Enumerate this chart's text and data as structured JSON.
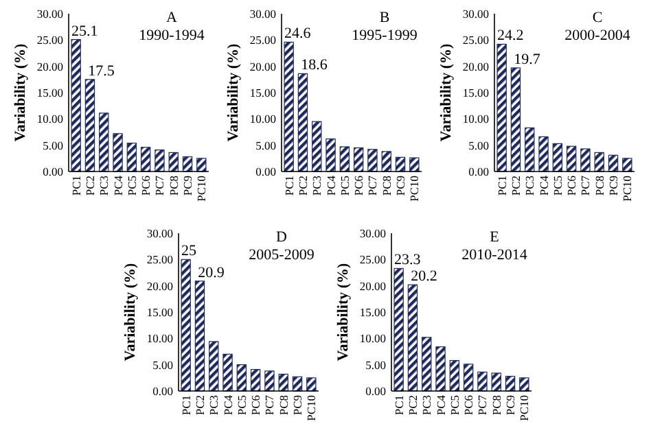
{
  "chart_data": [
    {
      "type": "bar",
      "title": "A",
      "subtitle": "1990-1994",
      "ylabel": "Variability (%)",
      "categories": [
        "PC1",
        "PC2",
        "PC3",
        "PC4",
        "PC5",
        "PC6",
        "PC7",
        "PC8",
        "PC9",
        "PC10"
      ],
      "values": [
        25.1,
        17.5,
        11.1,
        7.2,
        5.4,
        4.6,
        4.1,
        3.6,
        2.8,
        2.5
      ],
      "value_labels": [
        "25.1",
        "17.5",
        null,
        null,
        null,
        null,
        null,
        null,
        null,
        null
      ],
      "color": "#1f2a5c",
      "ylim": [
        0,
        30
      ],
      "yticks": [
        {
          "value": 0,
          "label": "0.00"
        },
        {
          "value": 5,
          "label": "5.00"
        },
        {
          "value": 10,
          "label": "10.00"
        },
        {
          "value": 15,
          "label": "15.00"
        },
        {
          "value": 20,
          "label": "20.00"
        },
        {
          "value": 25,
          "label": "25.00"
        },
        {
          "value": 30,
          "label": "30.00"
        }
      ]
    },
    {
      "type": "bar",
      "title": "B",
      "subtitle": "1995-1999",
      "ylabel": "Variability (%)",
      "categories": [
        "PC1",
        "PC2",
        "PC3",
        "PC4",
        "PC5",
        "PC6",
        "PC7",
        "PC8",
        "PC9",
        "PC10"
      ],
      "values": [
        24.6,
        18.6,
        9.5,
        6.2,
        4.7,
        4.5,
        4.2,
        3.8,
        2.7,
        2.6
      ],
      "value_labels": [
        "24.6",
        "18.6",
        null,
        null,
        null,
        null,
        null,
        null,
        null,
        null
      ],
      "color": "#1f2a5c",
      "ylim": [
        0,
        30
      ],
      "yticks": [
        {
          "value": 0,
          "label": "0.00"
        },
        {
          "value": 5,
          "label": "5.00"
        },
        {
          "value": 10,
          "label": "10.00"
        },
        {
          "value": 15,
          "label": "15.00"
        },
        {
          "value": 20,
          "label": "20.00"
        },
        {
          "value": 25,
          "label": "25.00"
        },
        {
          "value": 30,
          "label": "30.00"
        }
      ]
    },
    {
      "type": "bar",
      "title": "C",
      "subtitle": "2000-2004",
      "ylabel": "Variability (%)",
      "categories": [
        "PC1",
        "PC2",
        "PC3",
        "PC4",
        "PC5",
        "PC6",
        "PC7",
        "PC8",
        "PC9",
        "PC10"
      ],
      "values": [
        24.2,
        19.7,
        8.3,
        6.6,
        5.3,
        4.8,
        4.3,
        3.6,
        3.1,
        2.5
      ],
      "value_labels": [
        "24.2",
        "19.7",
        null,
        null,
        null,
        null,
        null,
        null,
        null,
        null
      ],
      "color": "#1f2a5c",
      "ylim": [
        0,
        30
      ],
      "yticks": [
        {
          "value": 0,
          "label": "0.00"
        },
        {
          "value": 5,
          "label": "5.00"
        },
        {
          "value": 10,
          "label": "10.00"
        },
        {
          "value": 15,
          "label": "15.00"
        },
        {
          "value": 20,
          "label": "20.00"
        },
        {
          "value": 25,
          "label": "25.00"
        },
        {
          "value": 30,
          "label": "30.00"
        }
      ]
    },
    {
      "type": "bar",
      "title": "D",
      "subtitle": "2005-2009",
      "ylabel": "Variability (%)",
      "categories": [
        "PC1",
        "PC2",
        "PC3",
        "PC4",
        "PC5",
        "PC6",
        "PC7",
        "PC8",
        "PC9",
        "PC10"
      ],
      "values": [
        25,
        20.9,
        9.4,
        7.0,
        5.0,
        4.1,
        3.8,
        3.2,
        2.7,
        2.5
      ],
      "value_labels": [
        "25",
        "20.9",
        null,
        null,
        null,
        null,
        null,
        null,
        null,
        null
      ],
      "color": "#1f2a5c",
      "ylim": [
        0,
        30
      ],
      "yticks": [
        {
          "value": 0,
          "label": "0.00"
        },
        {
          "value": 5,
          "label": "5.00"
        },
        {
          "value": 10,
          "label": "10.00"
        },
        {
          "value": 15,
          "label": "15.00"
        },
        {
          "value": 20,
          "label": "20.00"
        },
        {
          "value": 25,
          "label": "25.00"
        },
        {
          "value": 30,
          "label": "30.00"
        }
      ]
    },
    {
      "type": "bar",
      "title": "E",
      "subtitle": "2010-2014",
      "ylabel": "Variability (%)",
      "categories": [
        "PC1",
        "PC2",
        "PC3",
        "PC4",
        "PC5",
        "PC6",
        "PC7",
        "PC8",
        "PC9",
        "PC10"
      ],
      "values": [
        23.3,
        20.2,
        10.2,
        8.4,
        5.8,
        5.1,
        3.6,
        3.4,
        2.8,
        2.5
      ],
      "value_labels": [
        "23.3",
        "20.2",
        null,
        null,
        null,
        null,
        null,
        null,
        null,
        null
      ],
      "color": "#1f2a5c",
      "ylim": [
        0,
        30
      ],
      "yticks": [
        {
          "value": 0,
          "label": "0.00"
        },
        {
          "value": 5,
          "label": "5.00"
        },
        {
          "value": 10,
          "label": "10.00"
        },
        {
          "value": 15,
          "label": "15.00"
        },
        {
          "value": 20,
          "label": "20.00"
        },
        {
          "value": 25,
          "label": "25.00"
        },
        {
          "value": 30,
          "label": "30.00"
        }
      ]
    }
  ]
}
